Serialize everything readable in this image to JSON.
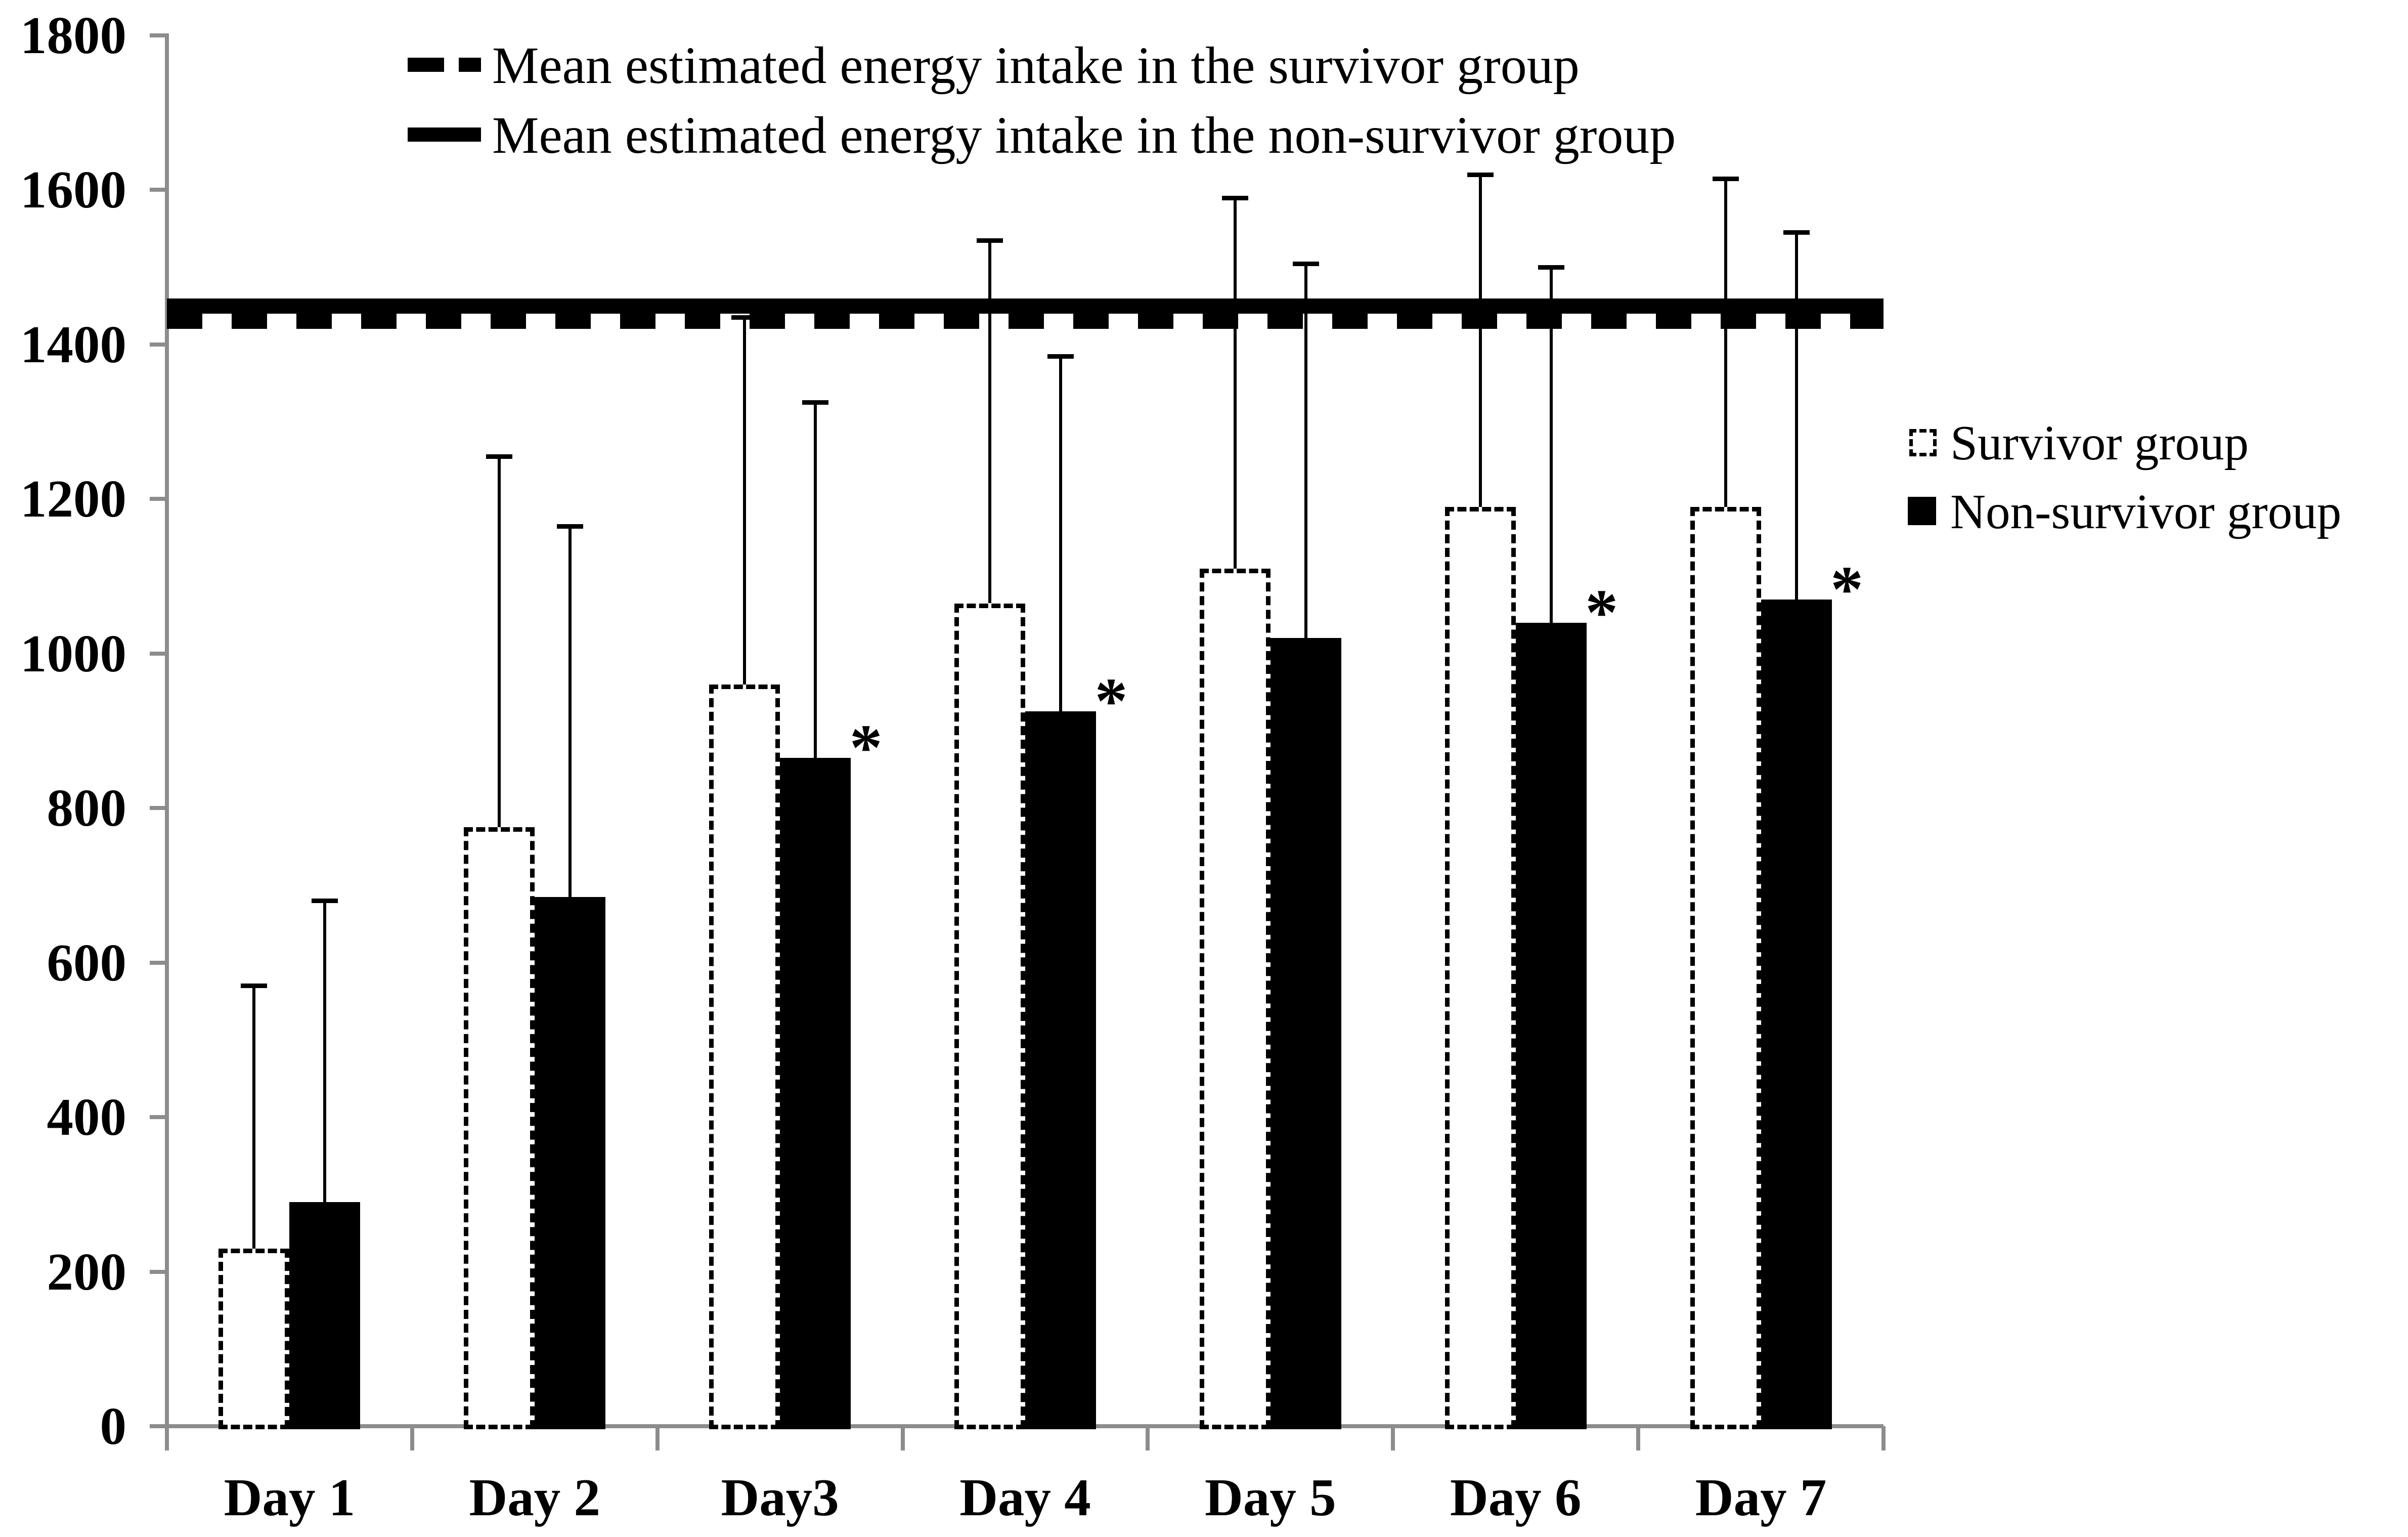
{
  "chart_data": {
    "type": "bar",
    "title": "",
    "xlabel": "",
    "ylabel": "",
    "categories": [
      "Day 1",
      "Day 2",
      "Day3",
      "Day 4",
      "Day 5",
      "Day 6",
      "Day 7"
    ],
    "ylim": [
      0,
      1800
    ],
    "ytick_interval": 200,
    "grid": false,
    "legend_position": "right",
    "significance_marker": "*",
    "series": [
      {
        "name": "Survivor group",
        "style": "white-dashed-outline",
        "values": [
          230,
          775,
          960,
          1065,
          1110,
          1190,
          1190
        ],
        "error_bar_top": [
          570,
          1255,
          1435,
          1535,
          1590,
          1620,
          1615
        ],
        "significance": [
          false,
          false,
          false,
          false,
          false,
          false,
          false
        ]
      },
      {
        "name": "Non-survivor group",
        "style": "solid-black",
        "values": [
          290,
          685,
          865,
          925,
          1020,
          1040,
          1070
        ],
        "error_bar_top": [
          680,
          1165,
          1325,
          1385,
          1505,
          1500,
          1545
        ],
        "significance": [
          false,
          false,
          true,
          true,
          false,
          true,
          true
        ]
      }
    ],
    "reference_lines": [
      {
        "label": "Mean estimated energy intake in the survivor group",
        "value": 1430,
        "style": "dashed"
      },
      {
        "label": "Mean estimated energy intake in the non-survivor group",
        "value": 1450,
        "style": "solid"
      }
    ],
    "colors": {
      "bar_fill_survivor": "#ffffff",
      "bar_fill_non_survivor": "#000000",
      "axis": "#8c8c8c",
      "text": "#000000"
    }
  }
}
